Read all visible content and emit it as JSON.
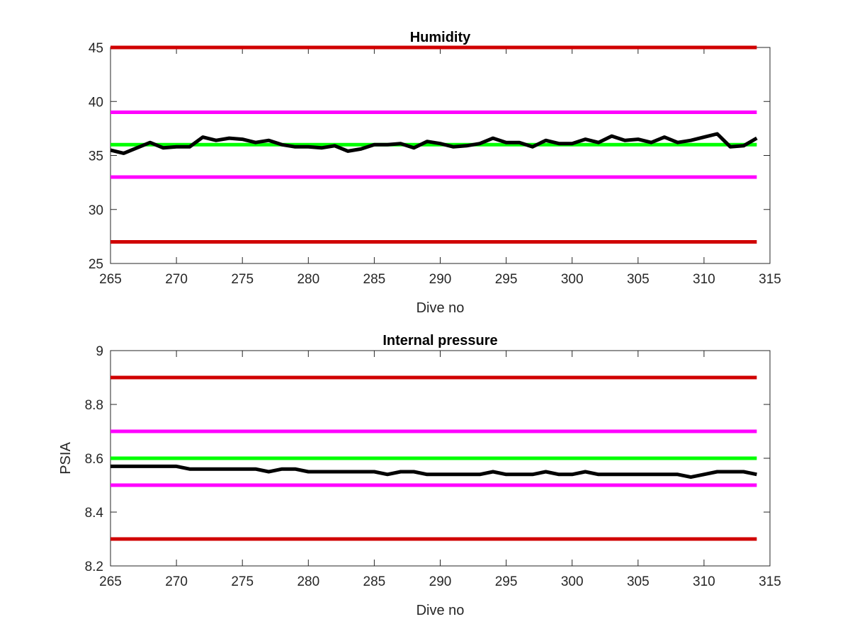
{
  "chart_data": [
    {
      "type": "line",
      "title": "Humidity",
      "xlabel": "Dive no",
      "ylabel": "",
      "xlim": [
        265,
        315
      ],
      "ylim": [
        25,
        45
      ],
      "xticks": [
        "265",
        "270",
        "275",
        "280",
        "285",
        "290",
        "295",
        "300",
        "305",
        "310",
        "315"
      ],
      "yticks": [
        "25",
        "30",
        "35",
        "40",
        "45"
      ],
      "grid": false,
      "legend": "none",
      "reference_lines": [
        {
          "y": 45,
          "color": "#d00000"
        },
        {
          "y": 39,
          "color": "#ff00ff"
        },
        {
          "y": 36,
          "color": "#00ff00"
        },
        {
          "y": 33,
          "color": "#ff00ff"
        },
        {
          "y": 27,
          "color": "#d00000"
        }
      ],
      "series": [
        {
          "color": "#000000",
          "x": [
            265,
            266,
            267,
            268,
            269,
            270,
            271,
            272,
            273,
            274,
            275,
            276,
            277,
            278,
            279,
            280,
            281,
            282,
            283,
            284,
            285,
            286,
            287,
            288,
            289,
            290,
            291,
            292,
            293,
            294,
            295,
            296,
            297,
            298,
            299,
            300,
            301,
            302,
            303,
            304,
            305,
            306,
            307,
            308,
            309,
            310,
            311,
            312,
            313,
            314
          ],
          "values": [
            35.5,
            35.2,
            35.7,
            36.2,
            35.7,
            35.8,
            35.8,
            36.7,
            36.4,
            36.6,
            36.5,
            36.2,
            36.4,
            36.0,
            35.8,
            35.8,
            35.7,
            35.9,
            35.4,
            35.6,
            36.0,
            36.0,
            36.1,
            35.7,
            36.3,
            36.1,
            35.8,
            35.9,
            36.1,
            36.6,
            36.2,
            36.2,
            35.8,
            36.4,
            36.1,
            36.1,
            36.5,
            36.2,
            36.8,
            36.4,
            36.5,
            36.2,
            36.7,
            36.2,
            36.4,
            36.7,
            37.0,
            35.8,
            35.9,
            36.6
          ]
        }
      ]
    },
    {
      "type": "line",
      "title": "Internal pressure",
      "xlabel": "Dive no",
      "ylabel": "PSIA",
      "xlim": [
        265,
        315
      ],
      "ylim": [
        8.2,
        9.0
      ],
      "xticks": [
        "265",
        "270",
        "275",
        "280",
        "285",
        "290",
        "295",
        "300",
        "305",
        "310",
        "315"
      ],
      "yticks": [
        "8.2",
        "8.4",
        "8.6",
        "8.8",
        "9"
      ],
      "grid": false,
      "legend": "none",
      "reference_lines": [
        {
          "y": 8.9,
          "color": "#d00000"
        },
        {
          "y": 8.7,
          "color": "#ff00ff"
        },
        {
          "y": 8.6,
          "color": "#00ff00"
        },
        {
          "y": 8.5,
          "color": "#ff00ff"
        },
        {
          "y": 8.3,
          "color": "#d00000"
        }
      ],
      "series": [
        {
          "color": "#000000",
          "x": [
            265,
            266,
            267,
            268,
            269,
            270,
            271,
            272,
            273,
            274,
            275,
            276,
            277,
            278,
            279,
            280,
            281,
            282,
            283,
            284,
            285,
            286,
            287,
            288,
            289,
            290,
            291,
            292,
            293,
            294,
            295,
            296,
            297,
            298,
            299,
            300,
            301,
            302,
            303,
            304,
            305,
            306,
            307,
            308,
            309,
            310,
            311,
            312,
            313,
            314
          ],
          "values": [
            8.57,
            8.57,
            8.57,
            8.57,
            8.57,
            8.57,
            8.56,
            8.56,
            8.56,
            8.56,
            8.56,
            8.56,
            8.55,
            8.56,
            8.56,
            8.55,
            8.55,
            8.55,
            8.55,
            8.55,
            8.55,
            8.54,
            8.55,
            8.55,
            8.54,
            8.54,
            8.54,
            8.54,
            8.54,
            8.55,
            8.54,
            8.54,
            8.54,
            8.55,
            8.54,
            8.54,
            8.55,
            8.54,
            8.54,
            8.54,
            8.54,
            8.54,
            8.54,
            8.54,
            8.53,
            8.54,
            8.55,
            8.55,
            8.55,
            8.54
          ]
        }
      ]
    }
  ]
}
